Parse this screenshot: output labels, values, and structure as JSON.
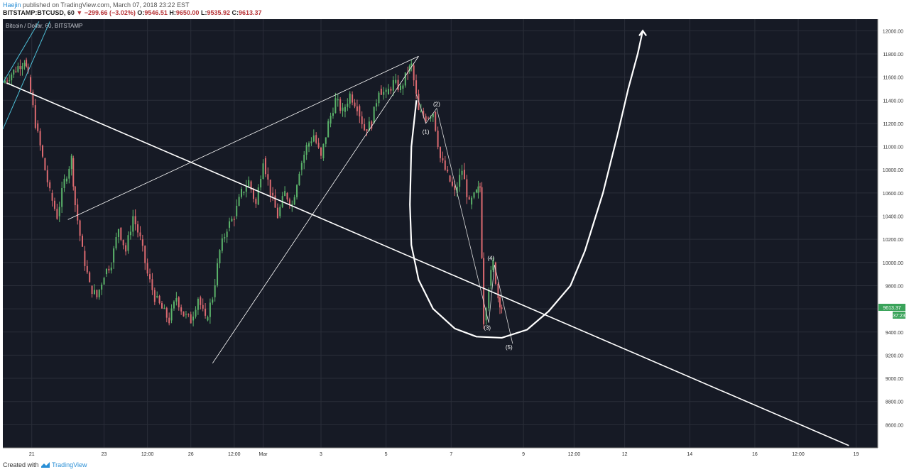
{
  "header": {
    "author": "Haejin",
    "published_text": "published on TradingView.com, March 07, 2018 23:22 EST",
    "symbol": "BITSTAMP:BTCUSD, 60",
    "change": "▼ −299.66 (−3.02%)",
    "o_label": "O:",
    "o_value": "9546.51",
    "h_label": "H:",
    "h_value": "9650.00",
    "l_label": "L:",
    "l_value": "9535.92",
    "c_label": "C:",
    "c_value": "9613.37"
  },
  "footer": {
    "created": "Created with",
    "brand": "TradingView"
  },
  "colors": {
    "background": "#161a25",
    "up": "#5bb36a",
    "down": "#dc6a70",
    "grid": "#2a2e39",
    "drawing": "#ffffff",
    "fib": "#4fc1d9",
    "price_tag": "#3aa35a"
  },
  "chart_data": {
    "type": "candlestick",
    "title": "Bitcoin / Dollar, 60, BITSTAMP",
    "ylim": [
      8400,
      12100
    ],
    "y_ticks": [
      "12000.00",
      "11800.00",
      "11600.00",
      "11400.00",
      "11200.00",
      "11000.00",
      "10800.00",
      "10600.00",
      "10400.00",
      "10200.00",
      "10000.00",
      "9800.00",
      "9600.00",
      "9400.00",
      "9200.00",
      "9000.00",
      "8800.00",
      "8600.00"
    ],
    "y_tick_values": [
      12000,
      11800,
      11600,
      11400,
      11200,
      11000,
      10800,
      10600,
      10400,
      10200,
      10000,
      9800,
      9600,
      9400,
      9200,
      9000,
      8800,
      8600
    ],
    "x_ticks": [
      "21",
      "23",
      "12:00",
      "26",
      "12:00",
      "Mar",
      "3",
      "5",
      "7",
      "9",
      "12:00",
      "12",
      "14",
      "16",
      "12:00",
      "19"
    ],
    "x_tick_positions": [
      0.4,
      1.4,
      2.0,
      2.6,
      3.2,
      3.6,
      4.4,
      5.3,
      6.2,
      7.2,
      7.9,
      8.6,
      9.5,
      10.4,
      11.0,
      11.8
    ],
    "x_range": [
      0,
      12.1
    ],
    "last_price": "9613.37",
    "countdown": "37:23",
    "price_path": [
      [
        0.0,
        11550
      ],
      [
        0.15,
        11650
      ],
      [
        0.3,
        11750
      ],
      [
        0.35,
        11600
      ],
      [
        0.45,
        11200
      ],
      [
        0.55,
        10900
      ],
      [
        0.65,
        10600
      ],
      [
        0.75,
        10400
      ],
      [
        0.85,
        10700
      ],
      [
        0.95,
        10900
      ],
      [
        1.0,
        10500
      ],
      [
        1.1,
        10100
      ],
      [
        1.2,
        9800
      ],
      [
        1.3,
        9700
      ],
      [
        1.4,
        9900
      ],
      [
        1.5,
        10000
      ],
      [
        1.6,
        10300
      ],
      [
        1.7,
        10100
      ],
      [
        1.8,
        10400
      ],
      [
        1.9,
        10200
      ],
      [
        2.0,
        9900
      ],
      [
        2.1,
        9700
      ],
      [
        2.2,
        9600
      ],
      [
        2.3,
        9500
      ],
      [
        2.4,
        9700
      ],
      [
        2.5,
        9550
      ],
      [
        2.6,
        9500
      ],
      [
        2.7,
        9700
      ],
      [
        2.8,
        9500
      ],
      [
        2.9,
        9700
      ],
      [
        3.0,
        10100
      ],
      [
        3.1,
        10300
      ],
      [
        3.2,
        10400
      ],
      [
        3.3,
        10600
      ],
      [
        3.4,
        10700
      ],
      [
        3.5,
        10500
      ],
      [
        3.6,
        10900
      ],
      [
        3.7,
        10600
      ],
      [
        3.8,
        10400
      ],
      [
        3.9,
        10600
      ],
      [
        4.0,
        10500
      ],
      [
        4.1,
        10800
      ],
      [
        4.2,
        11000
      ],
      [
        4.3,
        11100
      ],
      [
        4.4,
        10900
      ],
      [
        4.5,
        11200
      ],
      [
        4.6,
        11400
      ],
      [
        4.7,
        11300
      ],
      [
        4.8,
        11450
      ],
      [
        4.9,
        11350
      ],
      [
        5.0,
        11150
      ],
      [
        5.1,
        11200
      ],
      [
        5.2,
        11500
      ],
      [
        5.3,
        11450
      ],
      [
        5.4,
        11550
      ],
      [
        5.5,
        11500
      ],
      [
        5.6,
        11650
      ],
      [
        5.65,
        11700
      ],
      [
        5.75,
        11300
      ],
      [
        5.85,
        11250
      ],
      [
        5.95,
        11300
      ],
      [
        6.05,
        10900
      ],
      [
        6.15,
        10750
      ],
      [
        6.25,
        10600
      ],
      [
        6.35,
        10800
      ],
      [
        6.45,
        10500
      ],
      [
        6.55,
        10600
      ],
      [
        6.6,
        10650
      ],
      [
        6.65,
        9500
      ],
      [
        6.72,
        9800
      ],
      [
        6.78,
        10000
      ],
      [
        6.85,
        9700
      ],
      [
        6.9,
        9613
      ]
    ],
    "annotations": [
      {
        "label": "(1)",
        "x": 5.85,
        "y": 11110
      },
      {
        "label": "(2)",
        "x": 6.0,
        "y": 11350
      },
      {
        "label": "(3)",
        "x": 6.7,
        "y": 9420
      },
      {
        "label": "(4)",
        "x": 6.75,
        "y": 10020
      },
      {
        "label": "(5)",
        "x": 7.0,
        "y": 9250
      }
    ]
  }
}
